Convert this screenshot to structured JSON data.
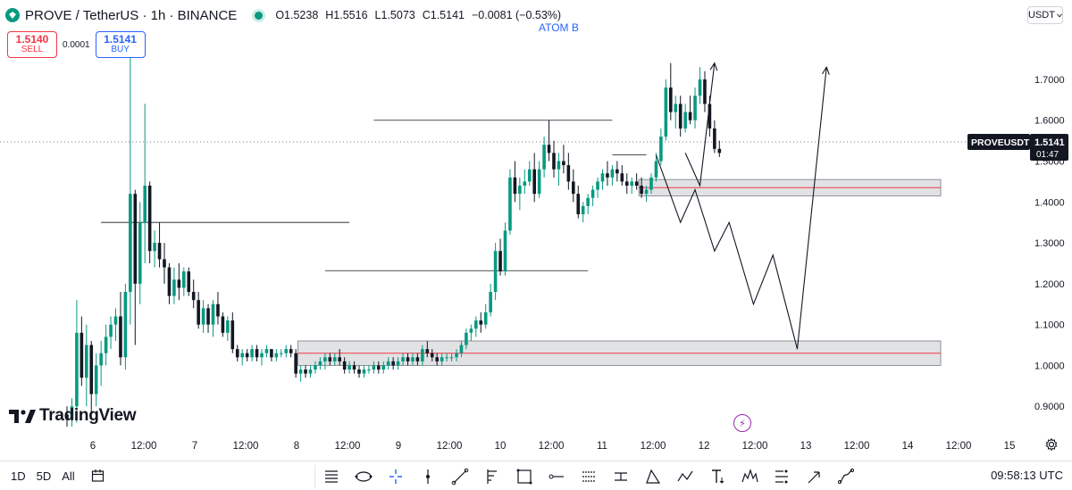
{
  "header": {
    "title": "PROVE / TetherUS · 1h · BINANCE",
    "open": "O1.5238",
    "high": "H1.5516",
    "low": "L1.5073",
    "close": "C1.5141",
    "change": "−0.0081 (−0.53%)"
  },
  "trade": {
    "sell_price": "1.5140",
    "sell_label": "SELL",
    "spread": "0.0001",
    "buy_price": "1.5141",
    "buy_label": "BUY"
  },
  "currency": "USDT",
  "bottom": {
    "ranges": [
      "1D",
      "5D",
      "All"
    ],
    "clock": "09:58:13 UTC",
    "tool_icons": [
      "horizontal-lines-icon",
      "shape-ellipse-icon",
      "crosshair-icon",
      "vertical-line-icon",
      "trend-line-icon",
      "fib-icon",
      "rectangle-icon",
      "horizontal-ray-icon",
      "channel-icon",
      "range-icon",
      "triangle-icon",
      "polyline-icon",
      "text-icon",
      "pattern-icon",
      "projection-icon",
      "arrow-icon",
      "path-icon"
    ]
  },
  "colors": {
    "up": "#089981",
    "down": "#131722",
    "zone_line": "#f23645",
    "price_tag": "#131722",
    "accent": "#2962ff"
  },
  "chart_data": {
    "type": "candlestick",
    "annotation": "ATOM B",
    "symbol_tag": "PROVEUSDT",
    "last_price": "1.5141",
    "countdown": "01:47",
    "y_axis": {
      "ticks": [
        "1.7000",
        "1.6000",
        "1.5000",
        "1.4000",
        "1.3000",
        "1.2000",
        "1.1000",
        "1.0000",
        "0.9000"
      ],
      "range": [
        0.835,
        1.82
      ]
    },
    "x_axis": {
      "ticks": [
        "6",
        "12:00",
        "7",
        "12:00",
        "8",
        "12:00",
        "9",
        "12:00",
        "10",
        "12:00",
        "11",
        "12:00",
        "12",
        "12:00",
        "13",
        "12:00",
        "14",
        "12:00",
        "15"
      ]
    },
    "candles": [
      [
        0.88,
        0.9,
        0.85,
        0.87
      ],
      [
        0.87,
        0.92,
        0.85,
        0.9
      ],
      [
        0.9,
        1.16,
        0.86,
        1.08
      ],
      [
        1.08,
        1.12,
        0.95,
        0.97
      ],
      [
        0.97,
        1.1,
        0.9,
        1.05
      ],
      [
        1.05,
        1.06,
        0.88,
        0.93
      ],
      [
        0.93,
        1.03,
        0.9,
        1.0
      ],
      [
        1.0,
        1.06,
        0.95,
        1.03
      ],
      [
        1.03,
        1.1,
        1.0,
        1.07
      ],
      [
        1.07,
        1.12,
        1.04,
        1.1
      ],
      [
        1.1,
        1.14,
        1.06,
        1.12
      ],
      [
        1.12,
        1.18,
        1.0,
        1.02
      ],
      [
        1.02,
        1.2,
        0.99,
        1.18
      ],
      [
        1.18,
        1.78,
        1.1,
        1.42
      ],
      [
        1.42,
        1.43,
        1.05,
        1.2
      ],
      [
        1.2,
        1.4,
        1.15,
        1.35
      ],
      [
        1.35,
        1.64,
        1.25,
        1.44
      ],
      [
        1.44,
        1.45,
        1.25,
        1.28
      ],
      [
        1.28,
        1.33,
        1.24,
        1.3
      ],
      [
        1.3,
        1.35,
        1.24,
        1.26
      ],
      [
        1.26,
        1.3,
        1.2,
        1.24
      ],
      [
        1.24,
        1.25,
        1.15,
        1.17
      ],
      [
        1.17,
        1.24,
        1.15,
        1.21
      ],
      [
        1.21,
        1.25,
        1.16,
        1.19
      ],
      [
        1.19,
        1.24,
        1.17,
        1.23
      ],
      [
        1.23,
        1.24,
        1.17,
        1.18
      ],
      [
        1.18,
        1.21,
        1.14,
        1.16
      ],
      [
        1.16,
        1.18,
        1.09,
        1.1
      ],
      [
        1.1,
        1.16,
        1.08,
        1.14
      ],
      [
        1.14,
        1.15,
        1.08,
        1.1
      ],
      [
        1.1,
        1.16,
        1.07,
        1.15
      ],
      [
        1.15,
        1.18,
        1.1,
        1.12
      ],
      [
        1.12,
        1.13,
        1.07,
        1.08
      ],
      [
        1.08,
        1.12,
        1.06,
        1.11
      ],
      [
        1.11,
        1.13,
        1.03,
        1.04
      ],
      [
        1.04,
        1.05,
        1.01,
        1.02
      ],
      [
        1.02,
        1.04,
        1.0,
        1.03
      ],
      [
        1.03,
        1.04,
        1.01,
        1.02
      ],
      [
        1.02,
        1.05,
        1.01,
        1.04
      ],
      [
        1.04,
        1.05,
        1.01,
        1.02
      ],
      [
        1.02,
        1.04,
        1.0,
        1.03
      ],
      [
        1.03,
        1.05,
        1.02,
        1.04
      ],
      [
        1.04,
        1.04,
        1.01,
        1.02
      ],
      [
        1.02,
        1.04,
        1.01,
        1.03
      ],
      [
        1.03,
        1.04,
        1.02,
        1.03
      ],
      [
        1.03,
        1.05,
        1.02,
        1.04
      ],
      [
        1.04,
        1.05,
        1.02,
        1.03
      ],
      [
        1.03,
        1.04,
        0.97,
        0.98
      ],
      [
        0.98,
        1.0,
        0.96,
        0.99
      ],
      [
        0.99,
        1.0,
        0.97,
        0.98
      ],
      [
        0.98,
        1.0,
        0.97,
        0.99
      ],
      [
        0.99,
        1.01,
        0.98,
        1.0
      ],
      [
        1.0,
        1.02,
        0.99,
        1.01
      ],
      [
        1.01,
        1.03,
        0.99,
        1.02
      ],
      [
        1.02,
        1.03,
        1.0,
        1.01
      ],
      [
        1.01,
        1.03,
        1.0,
        1.02
      ],
      [
        1.02,
        1.04,
        1.0,
        1.01
      ],
      [
        1.01,
        1.02,
        0.98,
        0.99
      ],
      [
        0.99,
        1.01,
        0.98,
        1.0
      ],
      [
        1.0,
        1.01,
        0.98,
        0.99
      ],
      [
        0.99,
        1.0,
        0.97,
        0.98
      ],
      [
        0.98,
        1.0,
        0.97,
        0.99
      ],
      [
        0.99,
        1.0,
        0.98,
        0.99
      ],
      [
        0.99,
        1.01,
        0.98,
        1.0
      ],
      [
        1.0,
        1.01,
        0.98,
        0.99
      ],
      [
        0.99,
        1.01,
        0.98,
        1.0
      ],
      [
        1.0,
        1.02,
        0.99,
        1.01
      ],
      [
        1.01,
        1.02,
        0.99,
        1.0
      ],
      [
        1.0,
        1.02,
        0.99,
        1.01
      ],
      [
        1.01,
        1.03,
        1.0,
        1.02
      ],
      [
        1.02,
        1.03,
        1.0,
        1.01
      ],
      [
        1.01,
        1.03,
        1.0,
        1.02
      ],
      [
        1.02,
        1.03,
        1.0,
        1.01
      ],
      [
        1.01,
        1.05,
        1.0,
        1.04
      ],
      [
        1.04,
        1.06,
        1.02,
        1.03
      ],
      [
        1.03,
        1.04,
        1.01,
        1.02
      ],
      [
        1.02,
        1.03,
        1.0,
        1.01
      ],
      [
        1.01,
        1.03,
        1.0,
        1.02
      ],
      [
        1.02,
        1.03,
        1.01,
        1.02
      ],
      [
        1.02,
        1.03,
        1.01,
        1.02
      ],
      [
        1.02,
        1.04,
        1.01,
        1.03
      ],
      [
        1.03,
        1.06,
        1.02,
        1.05
      ],
      [
        1.05,
        1.09,
        1.04,
        1.08
      ],
      [
        1.08,
        1.1,
        1.06,
        1.09
      ],
      [
        1.09,
        1.12,
        1.07,
        1.11
      ],
      [
        1.11,
        1.13,
        1.08,
        1.1
      ],
      [
        1.1,
        1.15,
        1.09,
        1.13
      ],
      [
        1.13,
        1.2,
        1.12,
        1.18
      ],
      [
        1.18,
        1.3,
        1.16,
        1.28
      ],
      [
        1.28,
        1.31,
        1.22,
        1.23
      ],
      [
        1.23,
        1.35,
        1.22,
        1.33
      ],
      [
        1.33,
        1.48,
        1.32,
        1.46
      ],
      [
        1.46,
        1.5,
        1.4,
        1.42
      ],
      [
        1.42,
        1.46,
        1.38,
        1.44
      ],
      [
        1.44,
        1.48,
        1.42,
        1.45
      ],
      [
        1.45,
        1.5,
        1.44,
        1.48
      ],
      [
        1.48,
        1.52,
        1.4,
        1.42
      ],
      [
        1.42,
        1.5,
        1.41,
        1.48
      ],
      [
        1.48,
        1.56,
        1.46,
        1.54
      ],
      [
        1.54,
        1.6,
        1.5,
        1.52
      ],
      [
        1.52,
        1.55,
        1.46,
        1.48
      ],
      [
        1.48,
        1.52,
        1.44,
        1.5
      ],
      [
        1.5,
        1.54,
        1.47,
        1.49
      ],
      [
        1.49,
        1.52,
        1.43,
        1.45
      ],
      [
        1.45,
        1.48,
        1.4,
        1.42
      ],
      [
        1.42,
        1.44,
        1.36,
        1.37
      ],
      [
        1.37,
        1.4,
        1.35,
        1.39
      ],
      [
        1.39,
        1.42,
        1.37,
        1.41
      ],
      [
        1.41,
        1.44,
        1.39,
        1.43
      ],
      [
        1.43,
        1.46,
        1.41,
        1.45
      ],
      [
        1.45,
        1.48,
        1.43,
        1.47
      ],
      [
        1.47,
        1.5,
        1.44,
        1.46
      ],
      [
        1.46,
        1.49,
        1.44,
        1.48
      ],
      [
        1.48,
        1.5,
        1.45,
        1.47
      ],
      [
        1.47,
        1.49,
        1.44,
        1.45
      ],
      [
        1.45,
        1.47,
        1.42,
        1.44
      ],
      [
        1.44,
        1.46,
        1.42,
        1.45
      ],
      [
        1.45,
        1.47,
        1.43,
        1.44
      ],
      [
        1.44,
        1.46,
        1.41,
        1.42
      ],
      [
        1.42,
        1.44,
        1.4,
        1.43
      ],
      [
        1.43,
        1.47,
        1.42,
        1.46
      ],
      [
        1.46,
        1.52,
        1.45,
        1.5
      ],
      [
        1.5,
        1.58,
        1.49,
        1.56
      ],
      [
        1.56,
        1.7,
        1.55,
        1.68
      ],
      [
        1.68,
        1.74,
        1.6,
        1.62
      ],
      [
        1.62,
        1.66,
        1.58,
        1.64
      ],
      [
        1.64,
        1.66,
        1.56,
        1.58
      ],
      [
        1.58,
        1.64,
        1.57,
        1.62
      ],
      [
        1.62,
        1.66,
        1.59,
        1.6
      ],
      [
        1.6,
        1.68,
        1.58,
        1.66
      ],
      [
        1.66,
        1.73,
        1.64,
        1.7
      ],
      [
        1.7,
        1.72,
        1.62,
        1.64
      ],
      [
        1.64,
        1.66,
        1.56,
        1.58
      ],
      [
        1.58,
        1.6,
        1.52,
        1.53
      ],
      [
        1.53,
        1.55,
        1.51,
        1.52
      ]
    ],
    "levels": [
      {
        "x0": 7,
        "x1": 58,
        "price": 1.35
      },
      {
        "x0": 63,
        "x1": 112,
        "price": 1.6
      },
      {
        "x0": 53,
        "x1": 107,
        "price": 1.232
      },
      {
        "x0": 112,
        "x1": 119,
        "price": 1.515
      }
    ],
    "zones": [
      {
        "x_start": 48,
        "price_top": 1.06,
        "price_bottom": 1.0,
        "mid": 1.03
      },
      {
        "x_start": 118,
        "price_top": 1.455,
        "price_bottom": 1.415,
        "mid": 1.435
      }
    ],
    "projections": [
      [
        [
          121,
          1.515
        ],
        [
          126,
          1.35
        ],
        [
          129,
          1.43
        ],
        [
          133,
          1.28
        ],
        [
          136,
          1.35
        ],
        [
          141,
          1.15
        ],
        [
          145,
          1.27
        ],
        [
          150,
          1.04
        ],
        [
          156,
          1.73
        ]
      ],
      [
        [
          127,
          1.52
        ],
        [
          130,
          1.44
        ],
        [
          133,
          1.74
        ]
      ]
    ]
  }
}
